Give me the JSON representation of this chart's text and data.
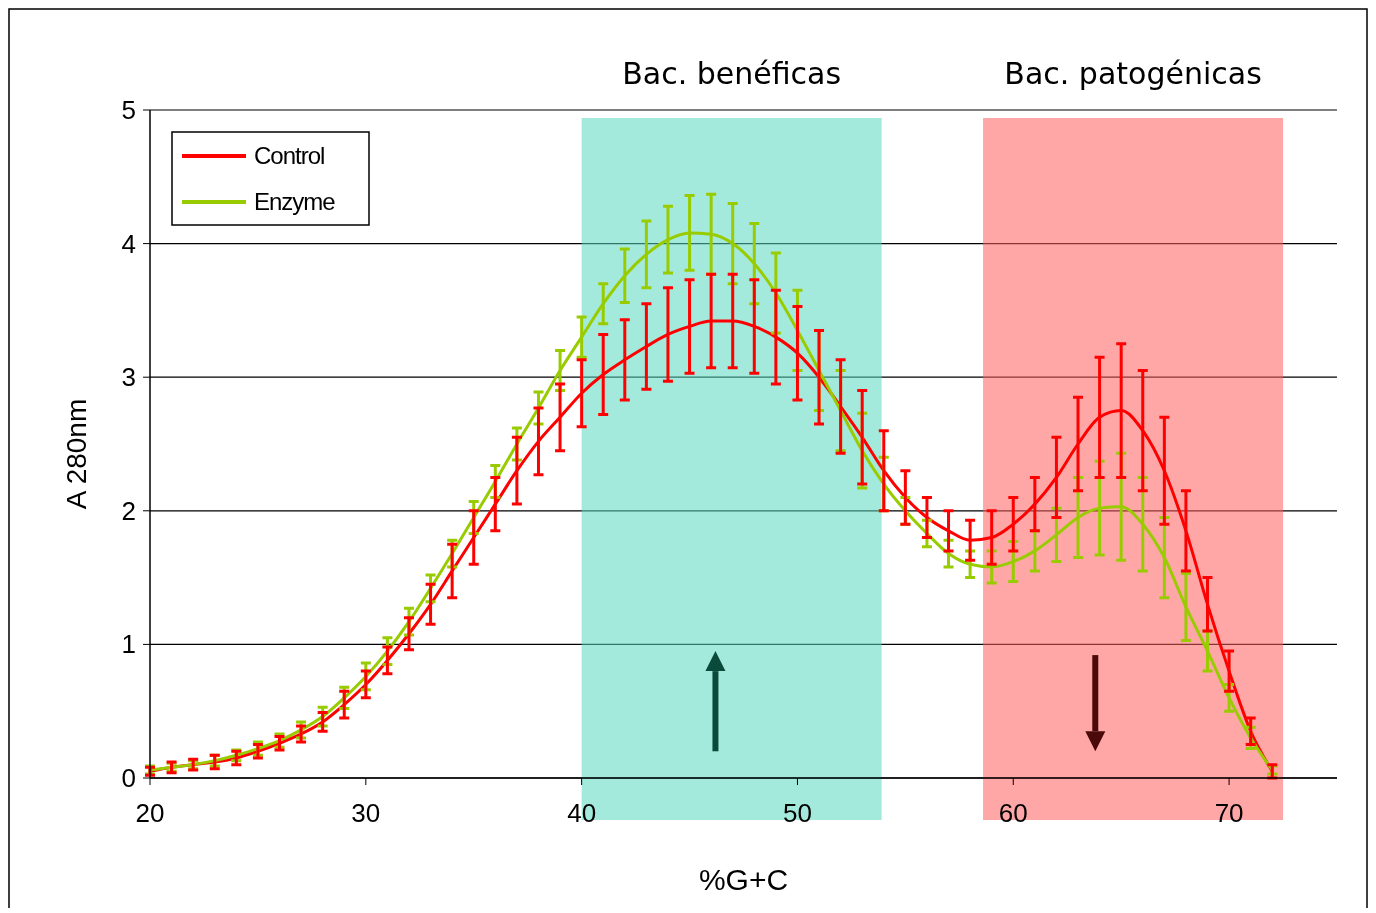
{
  "chart_data": {
    "type": "line",
    "xlabel": "%G+C",
    "ylabel": "A 280nm",
    "x": [
      20,
      21,
      22,
      23,
      24,
      25,
      26,
      27,
      28,
      29,
      30,
      31,
      32,
      33,
      34,
      35,
      36,
      37,
      38,
      39,
      40,
      41,
      42,
      43,
      44,
      45,
      46,
      47,
      48,
      49,
      50,
      51,
      52,
      53,
      54,
      55,
      56,
      57,
      58,
      59,
      60,
      61,
      62,
      63,
      64,
      65,
      66,
      67,
      68,
      69,
      70,
      71,
      72
    ],
    "series": [
      {
        "name": "Control",
        "color": "#ff0000",
        "values": [
          0.05,
          0.08,
          0.1,
          0.12,
          0.15,
          0.2,
          0.26,
          0.33,
          0.42,
          0.55,
          0.7,
          0.88,
          1.08,
          1.3,
          1.55,
          1.8,
          2.05,
          2.3,
          2.52,
          2.7,
          2.88,
          3.02,
          3.13,
          3.23,
          3.32,
          3.38,
          3.42,
          3.42,
          3.38,
          3.3,
          3.18,
          3.0,
          2.78,
          2.55,
          2.3,
          2.1,
          1.95,
          1.85,
          1.78,
          1.8,
          1.9,
          2.05,
          2.25,
          2.5,
          2.7,
          2.75,
          2.6,
          2.3,
          1.85,
          1.3,
          0.8,
          0.35,
          0.05
        ],
        "errors": [
          0.03,
          0.04,
          0.04,
          0.05,
          0.05,
          0.05,
          0.05,
          0.06,
          0.07,
          0.1,
          0.1,
          0.1,
          0.12,
          0.15,
          0.2,
          0.2,
          0.2,
          0.25,
          0.25,
          0.25,
          0.25,
          0.3,
          0.3,
          0.32,
          0.35,
          0.35,
          0.35,
          0.35,
          0.35,
          0.35,
          0.35,
          0.35,
          0.35,
          0.35,
          0.3,
          0.2,
          0.15,
          0.15,
          0.15,
          0.2,
          0.2,
          0.2,
          0.3,
          0.35,
          0.45,
          0.5,
          0.45,
          0.4,
          0.3,
          0.2,
          0.15,
          0.1,
          0.05
        ]
      },
      {
        "name": "Enzyme",
        "color": "#99cc00",
        "values": [
          0.06,
          0.08,
          0.1,
          0.13,
          0.17,
          0.22,
          0.28,
          0.36,
          0.46,
          0.6,
          0.76,
          0.95,
          1.17,
          1.42,
          1.68,
          1.95,
          2.22,
          2.5,
          2.77,
          3.05,
          3.3,
          3.55,
          3.76,
          3.92,
          4.03,
          4.08,
          4.07,
          4.0,
          3.85,
          3.63,
          3.35,
          3.05,
          2.75,
          2.45,
          2.2,
          2.0,
          1.83,
          1.68,
          1.6,
          1.58,
          1.62,
          1.7,
          1.82,
          1.95,
          2.02,
          2.03,
          1.9,
          1.65,
          1.28,
          0.95,
          0.6,
          0.3,
          0.06
        ],
        "errors": [
          0.03,
          0.03,
          0.03,
          0.04,
          0.04,
          0.05,
          0.05,
          0.06,
          0.07,
          0.08,
          0.1,
          0.1,
          0.1,
          0.1,
          0.1,
          0.12,
          0.12,
          0.12,
          0.12,
          0.15,
          0.15,
          0.15,
          0.2,
          0.25,
          0.25,
          0.28,
          0.3,
          0.3,
          0.3,
          0.3,
          0.3,
          0.3,
          0.3,
          0.28,
          0.2,
          0.1,
          0.1,
          0.1,
          0.1,
          0.12,
          0.15,
          0.15,
          0.2,
          0.3,
          0.35,
          0.4,
          0.35,
          0.3,
          0.25,
          0.15,
          0.1,
          0.08,
          0.03
        ]
      }
    ],
    "xlim": [
      20,
      75
    ],
    "xticks": [
      20,
      30,
      40,
      50,
      60,
      70
    ],
    "ylim": [
      0,
      5
    ],
    "yticks": [
      0,
      1,
      2,
      3,
      4,
      5
    ],
    "grid": "y",
    "legend": "top left",
    "marker": "none",
    "line_style": "solid",
    "bands": [
      {
        "axis": "x",
        "from": 40,
        "to": 53.9,
        "label": "Bac. benéficas",
        "color": "#5ad8c0"
      },
      {
        "axis": "x",
        "from": 58.6,
        "to": 72.5,
        "label": "Bac. patogénicas",
        "color": "#ff5c5c"
      }
    ]
  }
}
